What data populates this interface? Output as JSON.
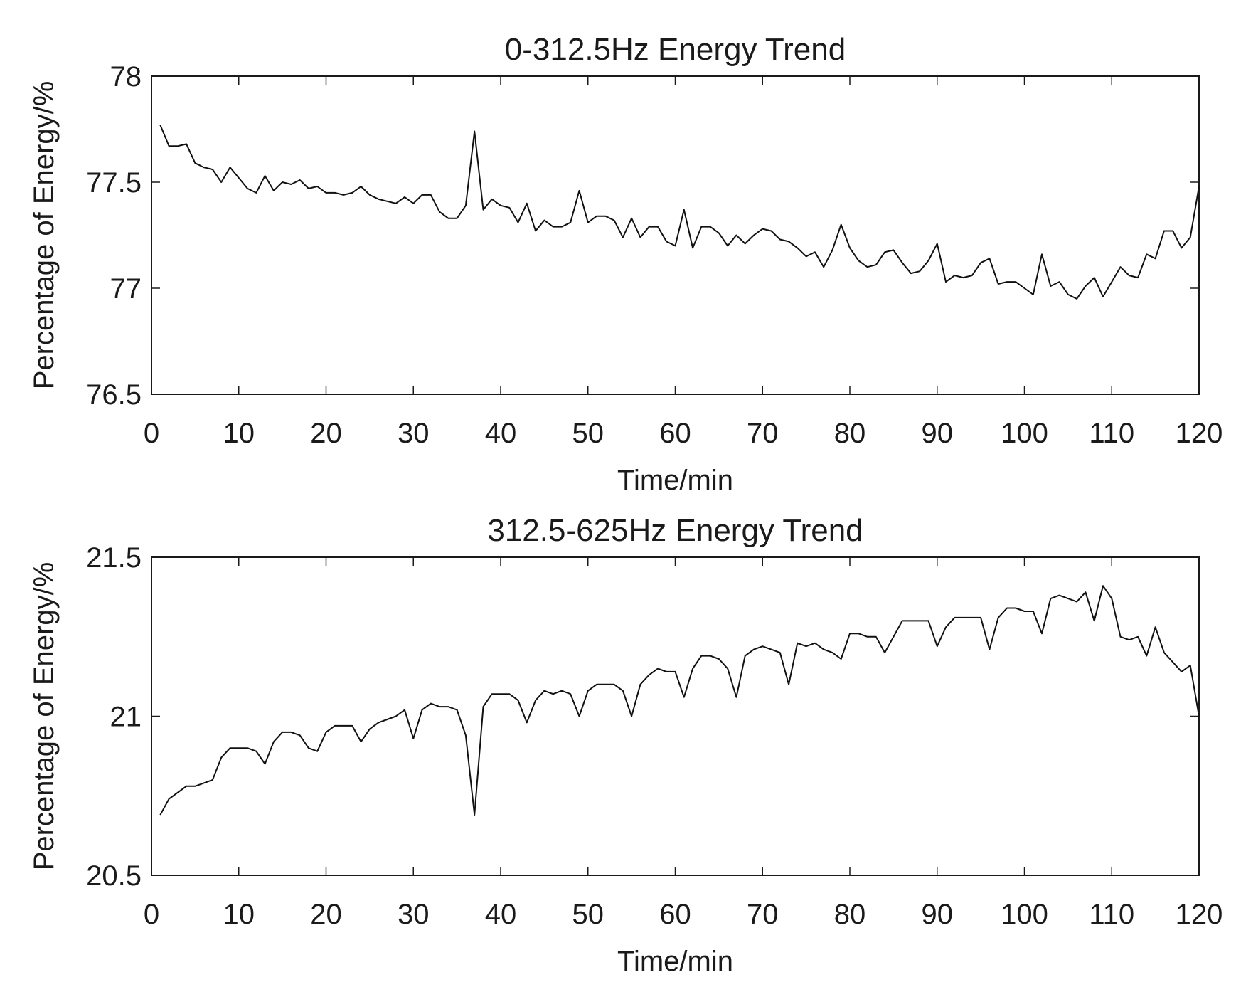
{
  "chart_data": [
    {
      "type": "line",
      "title": "0-312.5Hz Energy Trend",
      "xlabel": "Time/min",
      "ylabel": "Percentage of Energy/%",
      "xlim": [
        0,
        120
      ],
      "ylim": [
        76.5,
        78
      ],
      "xticks": [
        0,
        10,
        20,
        30,
        40,
        50,
        60,
        70,
        80,
        90,
        100,
        110,
        120
      ],
      "xtick_labels": [
        "0",
        "10",
        "20",
        "30",
        "40",
        "50",
        "60",
        "70",
        "80",
        "90",
        "100",
        "110",
        "120"
      ],
      "yticks": [
        76.5,
        77,
        77.5,
        78
      ],
      "ytick_labels": [
        "76.5",
        "77",
        "77.5",
        "78"
      ],
      "grid": false,
      "series": [
        {
          "name": "0-312.5Hz",
          "x": [
            1,
            2,
            3,
            4,
            5,
            6,
            7,
            8,
            9,
            10,
            11,
            12,
            13,
            14,
            15,
            16,
            17,
            18,
            19,
            20,
            21,
            22,
            23,
            24,
            25,
            26,
            27,
            28,
            29,
            30,
            31,
            32,
            33,
            34,
            35,
            36,
            37,
            38,
            39,
            40,
            41,
            42,
            43,
            44,
            45,
            46,
            47,
            48,
            49,
            50,
            51,
            52,
            53,
            54,
            55,
            56,
            57,
            58,
            59,
            60,
            61,
            62,
            63,
            64,
            65,
            66,
            67,
            68,
            69,
            70,
            71,
            72,
            73,
            74,
            75,
            76,
            77,
            78,
            79,
            80,
            81,
            82,
            83,
            84,
            85,
            86,
            87,
            88,
            89,
            90,
            91,
            92,
            93,
            94,
            95,
            96,
            97,
            98,
            99,
            100,
            101,
            102,
            103,
            104,
            105,
            106,
            107,
            108,
            109,
            110,
            111,
            112,
            113,
            114,
            115,
            116,
            117,
            118,
            119,
            120
          ],
          "values": [
            77.77,
            77.67,
            77.67,
            77.68,
            77.59,
            77.57,
            77.56,
            77.5,
            77.57,
            77.52,
            77.47,
            77.45,
            77.53,
            77.46,
            77.5,
            77.49,
            77.51,
            77.47,
            77.48,
            77.45,
            77.45,
            77.44,
            77.45,
            77.48,
            77.44,
            77.42,
            77.41,
            77.4,
            77.43,
            77.4,
            77.44,
            77.44,
            77.36,
            77.33,
            77.33,
            77.39,
            77.74,
            77.37,
            77.42,
            77.39,
            77.38,
            77.31,
            77.4,
            77.27,
            77.32,
            77.29,
            77.29,
            77.31,
            77.46,
            77.31,
            77.34,
            77.34,
            77.32,
            77.24,
            77.33,
            77.24,
            77.29,
            77.29,
            77.22,
            77.2,
            77.37,
            77.19,
            77.29,
            77.29,
            77.26,
            77.2,
            77.25,
            77.21,
            77.25,
            77.28,
            77.27,
            77.23,
            77.22,
            77.19,
            77.15,
            77.17,
            77.1,
            77.18,
            77.3,
            77.19,
            77.13,
            77.1,
            77.11,
            77.17,
            77.18,
            77.12,
            77.07,
            77.08,
            77.13,
            77.21,
            77.03,
            77.06,
            77.05,
            77.06,
            77.12,
            77.14,
            77.02,
            77.03,
            77.03,
            77.0,
            76.97,
            77.16,
            77.01,
            77.03,
            76.97,
            76.95,
            77.01,
            77.05,
            76.96,
            77.03,
            77.1,
            77.06,
            77.05,
            77.16,
            77.14,
            77.27,
            77.27,
            77.19,
            77.24,
            77.48
          ]
        }
      ]
    },
    {
      "type": "line",
      "title": "312.5-625Hz Energy Trend",
      "xlabel": "Time/min",
      "ylabel": "Percentage of Energy/%",
      "xlim": [
        0,
        120
      ],
      "ylim": [
        20.5,
        21.5
      ],
      "xticks": [
        0,
        10,
        20,
        30,
        40,
        50,
        60,
        70,
        80,
        90,
        100,
        110,
        120
      ],
      "xtick_labels": [
        "0",
        "10",
        "20",
        "30",
        "40",
        "50",
        "60",
        "70",
        "80",
        "90",
        "100",
        "110",
        "120"
      ],
      "yticks": [
        20.5,
        21,
        21.5
      ],
      "ytick_labels": [
        "20.5",
        "21",
        "21.5"
      ],
      "grid": false,
      "series": [
        {
          "name": "312.5-625Hz",
          "x": [
            1,
            2,
            3,
            4,
            5,
            6,
            7,
            8,
            9,
            10,
            11,
            12,
            13,
            14,
            15,
            16,
            17,
            18,
            19,
            20,
            21,
            22,
            23,
            24,
            25,
            26,
            27,
            28,
            29,
            30,
            31,
            32,
            33,
            34,
            35,
            36,
            37,
            38,
            39,
            40,
            41,
            42,
            43,
            44,
            45,
            46,
            47,
            48,
            49,
            50,
            51,
            52,
            53,
            54,
            55,
            56,
            57,
            58,
            59,
            60,
            61,
            62,
            63,
            64,
            65,
            66,
            67,
            68,
            69,
            70,
            71,
            72,
            73,
            74,
            75,
            76,
            77,
            78,
            79,
            80,
            81,
            82,
            83,
            84,
            85,
            86,
            87,
            88,
            89,
            90,
            91,
            92,
            93,
            94,
            95,
            96,
            97,
            98,
            99,
            100,
            101,
            102,
            103,
            104,
            105,
            106,
            107,
            108,
            109,
            110,
            111,
            112,
            113,
            114,
            115,
            116,
            117,
            118,
            119,
            120
          ],
          "values": [
            20.69,
            20.74,
            20.76,
            20.78,
            20.78,
            20.79,
            20.8,
            20.87,
            20.9,
            20.9,
            20.9,
            20.89,
            20.85,
            20.92,
            20.95,
            20.95,
            20.94,
            20.9,
            20.89,
            20.95,
            20.97,
            20.97,
            20.97,
            20.92,
            20.96,
            20.98,
            20.99,
            21.0,
            21.02,
            20.93,
            21.02,
            21.04,
            21.03,
            21.03,
            21.02,
            20.94,
            20.69,
            21.03,
            21.07,
            21.07,
            21.07,
            21.05,
            20.98,
            21.05,
            21.08,
            21.07,
            21.08,
            21.07,
            21.0,
            21.08,
            21.1,
            21.1,
            21.1,
            21.08,
            21.0,
            21.1,
            21.13,
            21.15,
            21.14,
            21.14,
            21.06,
            21.15,
            21.19,
            21.19,
            21.18,
            21.15,
            21.06,
            21.19,
            21.21,
            21.22,
            21.21,
            21.2,
            21.1,
            21.23,
            21.22,
            21.23,
            21.21,
            21.2,
            21.18,
            21.26,
            21.26,
            21.25,
            21.25,
            21.2,
            21.25,
            21.3,
            21.3,
            21.3,
            21.3,
            21.22,
            21.28,
            21.31,
            21.31,
            21.31,
            21.31,
            21.21,
            21.31,
            21.34,
            21.34,
            21.33,
            21.33,
            21.26,
            21.37,
            21.38,
            21.37,
            21.36,
            21.39,
            21.3,
            21.41,
            21.37,
            21.25,
            21.24,
            21.25,
            21.19,
            21.28,
            21.2,
            21.17,
            21.14,
            21.16,
            21.0
          ]
        }
      ]
    }
  ]
}
